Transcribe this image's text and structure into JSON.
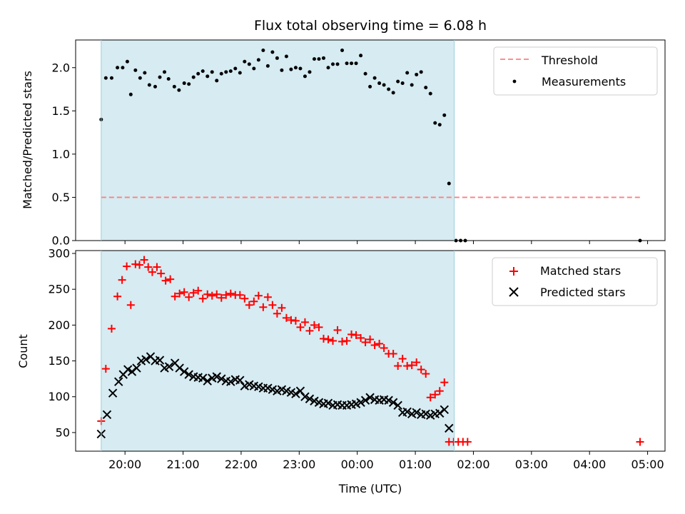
{
  "chart_data": [
    {
      "type": "scatter",
      "title": "Flux total observing time = 6.08 h",
      "ylabel": "Matched/Predicted stars",
      "xlabel": "",
      "x_unit": "hours since 20:00 UTC",
      "xlim": [
        -0.85,
        9.3
      ],
      "ylim": [
        0.0,
        2.32
      ],
      "yticks": [
        0.0,
        0.5,
        1.0,
        1.5,
        2.0
      ],
      "ytick_labels": [
        "0.0",
        "0.5",
        "1.0",
        "1.5",
        "2.0"
      ],
      "shaded_span": [
        -0.41,
        5.67
      ],
      "legend_position": "top-right",
      "threshold": {
        "name": "Threshold",
        "value": 0.5,
        "x": [
          -0.41,
          8.87
        ],
        "color": "#ff7f7f"
      },
      "series": [
        {
          "name": "Measurements",
          "color": "#000000",
          "marker": "dot",
          "points": [
            [
              -0.41,
              1.4
            ],
            [
              -0.33,
              1.88
            ],
            [
              -0.23,
              1.88
            ],
            [
              -0.13,
              2.0
            ],
            [
              -0.04,
              2.0
            ],
            [
              0.04,
              2.07
            ],
            [
              0.1,
              1.69
            ],
            [
              0.18,
              1.97
            ],
            [
              0.26,
              1.88
            ],
            [
              0.34,
              1.94
            ],
            [
              0.42,
              1.8
            ],
            [
              0.52,
              1.78
            ],
            [
              0.6,
              1.89
            ],
            [
              0.68,
              1.95
            ],
            [
              0.75,
              1.87
            ],
            [
              0.85,
              1.78
            ],
            [
              0.93,
              1.74
            ],
            [
              1.02,
              1.82
            ],
            [
              1.1,
              1.81
            ],
            [
              1.18,
              1.89
            ],
            [
              1.26,
              1.93
            ],
            [
              1.34,
              1.96
            ],
            [
              1.42,
              1.9
            ],
            [
              1.5,
              1.95
            ],
            [
              1.58,
              1.85
            ],
            [
              1.66,
              1.93
            ],
            [
              1.74,
              1.95
            ],
            [
              1.82,
              1.96
            ],
            [
              1.9,
              1.99
            ],
            [
              1.98,
              1.94
            ],
            [
              2.06,
              2.07
            ],
            [
              2.14,
              2.04
            ],
            [
              2.22,
              1.99
            ],
            [
              2.3,
              2.09
            ],
            [
              2.38,
              2.2
            ],
            [
              2.46,
              2.02
            ],
            [
              2.54,
              2.18
            ],
            [
              2.62,
              2.11
            ],
            [
              2.7,
              1.97
            ],
            [
              2.78,
              2.13
            ],
            [
              2.86,
              1.98
            ],
            [
              2.94,
              2.0
            ],
            [
              3.02,
              1.99
            ],
            [
              3.1,
              1.9
            ],
            [
              3.18,
              1.95
            ],
            [
              3.26,
              2.1
            ],
            [
              3.34,
              2.1
            ],
            [
              3.42,
              2.11
            ],
            [
              3.5,
              2.0
            ],
            [
              3.58,
              2.04
            ],
            [
              3.66,
              2.04
            ],
            [
              3.74,
              2.2
            ],
            [
              3.82,
              2.05
            ],
            [
              3.9,
              2.05
            ],
            [
              3.98,
              2.05
            ],
            [
              4.06,
              2.14
            ],
            [
              4.14,
              1.93
            ],
            [
              4.22,
              1.78
            ],
            [
              4.3,
              1.88
            ],
            [
              4.38,
              1.82
            ],
            [
              4.46,
              1.8
            ],
            [
              4.54,
              1.75
            ],
            [
              4.62,
              1.71
            ],
            [
              4.7,
              1.84
            ],
            [
              4.78,
              1.82
            ],
            [
              4.86,
              1.94
            ],
            [
              4.94,
              1.8
            ],
            [
              5.02,
              1.92
            ],
            [
              5.1,
              1.95
            ],
            [
              5.18,
              1.77
            ],
            [
              5.26,
              1.7
            ],
            [
              5.34,
              1.36
            ],
            [
              5.42,
              1.34
            ],
            [
              5.5,
              1.45
            ],
            [
              5.58,
              0.66
            ],
            [
              5.7,
              0.0
            ],
            [
              5.78,
              0.0
            ],
            [
              5.86,
              0.0
            ],
            [
              8.87,
              0.0
            ]
          ]
        }
      ],
      "x_range_shared": true
    },
    {
      "type": "scatter",
      "title": "",
      "ylabel": "Count",
      "xlabel": "Time (UTC)",
      "x_unit": "hours since 20:00 UTC",
      "xlim": [
        -0.85,
        9.3
      ],
      "ylim": [
        24,
        304
      ],
      "yticks": [
        50,
        100,
        150,
        200,
        250,
        300
      ],
      "ytick_labels": [
        "50",
        "100",
        "150",
        "200",
        "250",
        "300"
      ],
      "xticks": [
        0,
        1,
        2,
        3,
        4,
        5,
        6,
        7,
        8,
        9
      ],
      "xtick_labels": [
        "20:00",
        "21:00",
        "22:00",
        "23:00",
        "00:00",
        "01:00",
        "02:00",
        "03:00",
        "04:00",
        "05:00"
      ],
      "shaded_span": [
        -0.41,
        5.67
      ],
      "legend_position": "top-right",
      "series": [
        {
          "name": "Matched stars",
          "color": "#ff0000",
          "marker": "plus",
          "points": [
            [
              -0.41,
              66
            ],
            [
              -0.33,
              139
            ],
            [
              -0.23,
              195
            ],
            [
              -0.13,
              240
            ],
            [
              -0.05,
              263
            ],
            [
              0.03,
              282
            ],
            [
              0.1,
              228
            ],
            [
              0.18,
              285
            ],
            [
              0.25,
              284
            ],
            [
              0.33,
              291
            ],
            [
              0.4,
              281
            ],
            [
              0.47,
              274
            ],
            [
              0.55,
              281
            ],
            [
              0.62,
              272
            ],
            [
              0.7,
              262
            ],
            [
              0.78,
              264
            ],
            [
              0.86,
              240
            ],
            [
              0.94,
              244
            ],
            [
              1.02,
              246
            ],
            [
              1.1,
              239
            ],
            [
              1.18,
              245
            ],
            [
              1.26,
              248
            ],
            [
              1.34,
              237
            ],
            [
              1.42,
              243
            ],
            [
              1.5,
              241
            ],
            [
              1.58,
              243
            ],
            [
              1.66,
              238
            ],
            [
              1.74,
              242
            ],
            [
              1.82,
              244
            ],
            [
              1.9,
              242
            ],
            [
              1.98,
              242
            ],
            [
              2.06,
              237
            ],
            [
              2.14,
              228
            ],
            [
              2.22,
              233
            ],
            [
              2.3,
              241
            ],
            [
              2.38,
              225
            ],
            [
              2.46,
              239
            ],
            [
              2.54,
              228
            ],
            [
              2.62,
              216
            ],
            [
              2.7,
              224
            ],
            [
              2.78,
              210
            ],
            [
              2.86,
              207
            ],
            [
              2.94,
              206
            ],
            [
              3.02,
              197
            ],
            [
              3.1,
              204
            ],
            [
              3.18,
              192
            ],
            [
              3.26,
              200
            ],
            [
              3.34,
              197
            ],
            [
              3.42,
              181
            ],
            [
              3.5,
              180
            ],
            [
              3.58,
              178
            ],
            [
              3.66,
              193
            ],
            [
              3.74,
              177
            ],
            [
              3.82,
              178
            ],
            [
              3.9,
              187
            ],
            [
              3.98,
              186
            ],
            [
              4.06,
              182
            ],
            [
              4.14,
              176
            ],
            [
              4.22,
              180
            ],
            [
              4.3,
              172
            ],
            [
              4.38,
              174
            ],
            [
              4.46,
              168
            ],
            [
              4.54,
              160
            ],
            [
              4.62,
              160
            ],
            [
              4.7,
              143
            ],
            [
              4.78,
              153
            ],
            [
              4.86,
              143
            ],
            [
              4.94,
              144
            ],
            [
              5.02,
              148
            ],
            [
              5.1,
              138
            ],
            [
              5.18,
              132
            ],
            [
              5.26,
              99
            ],
            [
              5.34,
              103
            ],
            [
              5.42,
              108
            ],
            [
              5.5,
              120
            ],
            [
              5.58,
              37
            ],
            [
              5.66,
              37
            ],
            [
              5.74,
              37
            ],
            [
              5.82,
              37
            ],
            [
              5.9,
              37
            ],
            [
              8.87,
              37
            ]
          ]
        },
        {
          "name": "Predicted stars",
          "color": "#000000",
          "marker": "x",
          "points": [
            [
              -0.41,
              48
            ],
            [
              -0.31,
              75
            ],
            [
              -0.21,
              105
            ],
            [
              -0.11,
              121
            ],
            [
              -0.03,
              131
            ],
            [
              0.05,
              138
            ],
            [
              0.12,
              135
            ],
            [
              0.2,
              140
            ],
            [
              0.28,
              150
            ],
            [
              0.36,
              152
            ],
            [
              0.44,
              156
            ],
            [
              0.52,
              150
            ],
            [
              0.6,
              151
            ],
            [
              0.68,
              140
            ],
            [
              0.76,
              142
            ],
            [
              0.86,
              147
            ],
            [
              0.94,
              140
            ],
            [
              1.02,
              135
            ],
            [
              1.1,
              131
            ],
            [
              1.18,
              128
            ],
            [
              1.26,
              127
            ],
            [
              1.34,
              126
            ],
            [
              1.42,
              122
            ],
            [
              1.5,
              126
            ],
            [
              1.58,
              128
            ],
            [
              1.66,
              125
            ],
            [
              1.74,
              122
            ],
            [
              1.82,
              121
            ],
            [
              1.9,
              124
            ],
            [
              1.98,
              123
            ],
            [
              2.06,
              115
            ],
            [
              2.14,
              117
            ],
            [
              2.22,
              115
            ],
            [
              2.3,
              114
            ],
            [
              2.38,
              112
            ],
            [
              2.46,
              112
            ],
            [
              2.54,
              110
            ],
            [
              2.62,
              108
            ],
            [
              2.7,
              110
            ],
            [
              2.78,
              108
            ],
            [
              2.86,
              106
            ],
            [
              2.94,
              104
            ],
            [
              3.02,
              108
            ],
            [
              3.1,
              100
            ],
            [
              3.18,
              97
            ],
            [
              3.26,
              94
            ],
            [
              3.34,
              92
            ],
            [
              3.42,
              90
            ],
            [
              3.5,
              91
            ],
            [
              3.58,
              88
            ],
            [
              3.66,
              89
            ],
            [
              3.74,
              88
            ],
            [
              3.82,
              88
            ],
            [
              3.9,
              89
            ],
            [
              3.98,
              90
            ],
            [
              4.06,
              92
            ],
            [
              4.14,
              95
            ],
            [
              4.22,
              99
            ],
            [
              4.3,
              96
            ],
            [
              4.38,
              95
            ],
            [
              4.46,
              96
            ],
            [
              4.54,
              95
            ],
            [
              4.62,
              92
            ],
            [
              4.7,
              88
            ],
            [
              4.78,
              78
            ],
            [
              4.86,
              79
            ],
            [
              4.94,
              76
            ],
            [
              5.02,
              78
            ],
            [
              5.1,
              75
            ],
            [
              5.18,
              76
            ],
            [
              5.26,
              74
            ],
            [
              5.34,
              76
            ],
            [
              5.42,
              77
            ],
            [
              5.5,
              82
            ],
            [
              5.58,
              56
            ]
          ]
        }
      ]
    }
  ],
  "colors": {
    "shade": "#add8e6",
    "threshold": "#ff7f7f",
    "matched": "#ff0000",
    "predicted": "#000000",
    "measurements": "#000000"
  }
}
